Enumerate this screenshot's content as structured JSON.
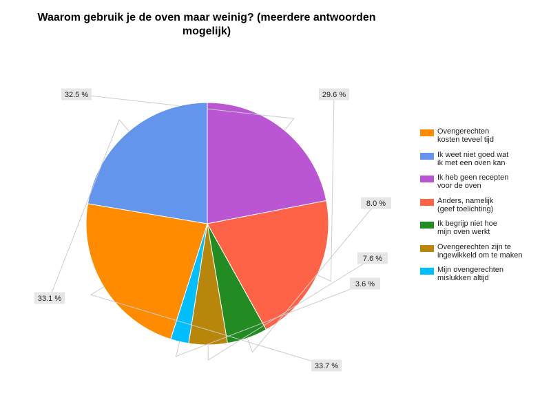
{
  "chart_data": {
    "type": "pie",
    "title": [
      "Waarom gebruik je de oven maar weinig? (meerdere antwoorden",
      "mogelijk)"
    ],
    "slices": [
      {
        "label": "Ik heb geen recepten voor de oven",
        "legend": [
          "Ik heb geen recepten",
          "voor de oven"
        ],
        "value": 32.5,
        "color": "#BA55D3"
      },
      {
        "label": "Anders, namelijk (geef toelichting)",
        "legend": [
          "Anders, namelijk",
          "(geef toelichting)"
        ],
        "value": 29.6,
        "color": "#FF6347"
      },
      {
        "label": "Ik begrijp niet hoe mijn oven werkt",
        "legend": [
          "Ik begrijp niet hoe",
          "mijn oven werkt"
        ],
        "value": 8.0,
        "color": "#228B22"
      },
      {
        "label": "Ovengerechten zijn te ingewikkeld om te maken",
        "legend": [
          "Ovengerechten zijn te",
          "ingewikkeld om te maken"
        ],
        "value": 7.6,
        "color": "#B8860B"
      },
      {
        "label": "Mijn ovengerechten mislukken altijd",
        "legend": [
          "Mijn ovengerechten",
          "mislukken altijd"
        ],
        "value": 3.6,
        "color": "#00BFFF"
      },
      {
        "label": "Ovengerechten kosten teveel tijd",
        "legend": [
          "Ovengerechten",
          "kosten teveel tijd"
        ],
        "value": 33.7,
        "color": "#FF8C00"
      },
      {
        "label": "Ik weet niet goed wat ik met een oven kan",
        "legend": [
          "Ik weet niet goed wat",
          "ik met een oven kan"
        ],
        "value": 33.1,
        "color": "#6495ED"
      }
    ],
    "data_labels": [
      "32.5 %",
      "29.6 %",
      "8.0 %",
      "7.6 %",
      "3.6 %",
      "33.7 %",
      "33.1 %"
    ],
    "legend_order": [
      5,
      6,
      0,
      1,
      2,
      3,
      4
    ],
    "legend_position": "right"
  }
}
